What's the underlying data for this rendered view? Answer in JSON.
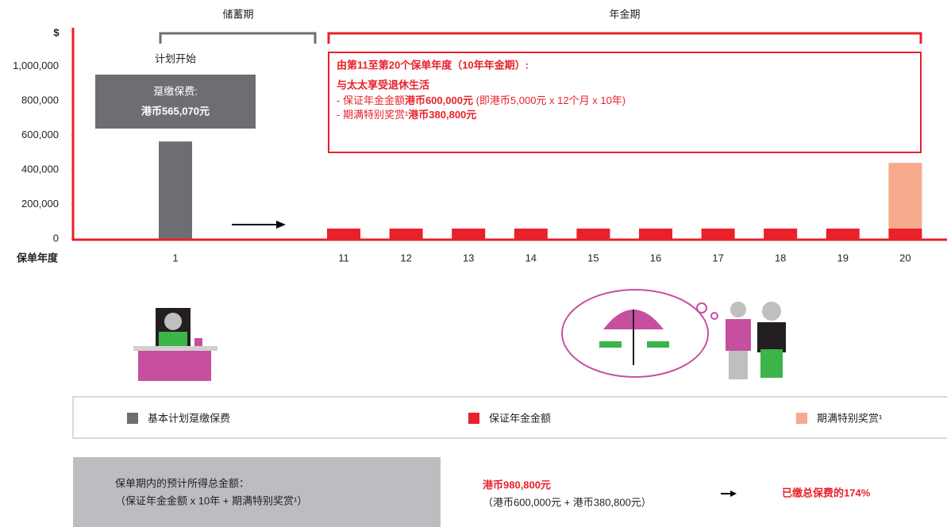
{
  "chart_data": {
    "type": "bar",
    "stacked": true,
    "y_unit": "$",
    "x_label": "保单年度",
    "categories": [
      "1",
      "11",
      "12",
      "13",
      "14",
      "15",
      "16",
      "17",
      "18",
      "19",
      "20"
    ],
    "series": [
      {
        "name": "基本计划趸缴保费",
        "color": "#6d6e71",
        "values": [
          565070,
          null,
          null,
          null,
          null,
          null,
          null,
          null,
          null,
          null,
          null
        ]
      },
      {
        "name": "保证年金金额",
        "color": "#e8212a",
        "values": [
          null,
          60000,
          60000,
          60000,
          60000,
          60000,
          60000,
          60000,
          60000,
          60000,
          60000
        ]
      },
      {
        "name": "期满特别奖赏¹",
        "color": "#f6a98c",
        "values": [
          null,
          null,
          null,
          null,
          null,
          null,
          null,
          null,
          null,
          null,
          380800
        ]
      }
    ],
    "ylim": [
      0,
      1220000
    ],
    "yticks": [
      0,
      {
        "value": 200000,
        "label": "200,000"
      },
      {
        "value": 400000,
        "label": "400,000"
      },
      {
        "value": 600000,
        "label": "600,000"
      },
      {
        "value": 800000,
        "label": "800,000"
      },
      {
        "value": 1000000,
        "label": "1,000,000"
      }
    ],
    "periods": {
      "savings": "储蓄期",
      "annuity": "年金期"
    },
    "start_label": "计划开始",
    "premium_box": {
      "line1": "趸缴保费:",
      "line2": "港币565,070元"
    },
    "annuity_box": {
      "heading": "由第11至第20个保单年度（10年年金期）:",
      "subheading": "与太太享受退休生活",
      "item1": {
        "prefix": "- 保证年金金额",
        "bold": "港币600,000元",
        "suffix": " (即港币5,000元 x 12个月 x 10年)"
      },
      "item2": {
        "prefix": "- 期满特别奖赏¹",
        "bold": "港币380,800元"
      }
    }
  },
  "summary": {
    "label1": "保单期内的预计所得总金额：",
    "label2": "（保证年金金额 x 10年 + 期满特别奖赏¹）",
    "total": "港币980,800元",
    "breakdown": "（港币600,000元 + 港币380,800元）",
    "ratio": "已缴总保费的174%"
  }
}
